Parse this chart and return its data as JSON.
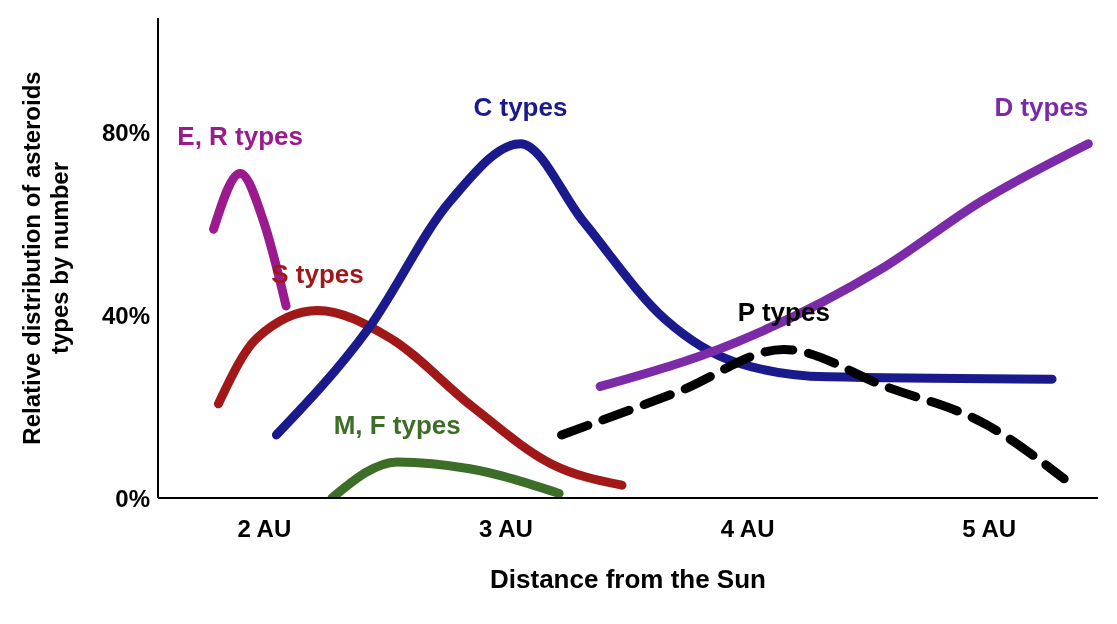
{
  "chart_data": {
    "type": "line",
    "xlabel": "Distance from the Sun",
    "ylabel": "Relative distribution of asteroids types by number",
    "xlim": [
      1.56,
      5.45
    ],
    "xticks": [
      {
        "value": 2,
        "label": "2 AU"
      },
      {
        "value": 3,
        "label": "3 AU"
      },
      {
        "value": 4,
        "label": "4 AU"
      },
      {
        "value": 5,
        "label": "5 AU"
      }
    ],
    "ylim": [
      0,
      105
    ],
    "yticks": [
      {
        "value": 0,
        "label": "0%"
      },
      {
        "value": 40,
        "label": "40%"
      },
      {
        "value": 80,
        "label": "80%"
      }
    ],
    "grid": false,
    "legend": false,
    "marker": "none",
    "series": [
      {
        "name": "E, R types",
        "color": "#9b1b8e",
        "x": [
          1.79,
          1.9,
          2.0,
          2.09
        ],
        "values": [
          58.8,
          71,
          60,
          42
        ]
      },
      {
        "name": "S types",
        "color": "#a01818",
        "x": [
          1.81,
          1.97,
          2.22,
          2.52,
          2.86,
          3.19,
          3.48
        ],
        "values": [
          20.6,
          35,
          41,
          35,
          20,
          7.4,
          2.8
        ]
      },
      {
        "name": "C types",
        "color": "#1a1a8c",
        "x": [
          2.05,
          2.43,
          2.77,
          3.06,
          3.32,
          3.66,
          3.95,
          4.33,
          5.26
        ],
        "values": [
          13.8,
          37,
          65,
          77.5,
          60.5,
          39,
          29.7,
          26.5,
          26
        ]
      },
      {
        "name": "M, F types",
        "color": "#3c6e28",
        "x": [
          2.28,
          2.55,
          2.85,
          3.22
        ],
        "values": [
          0,
          7.9,
          6.4,
          1
        ]
      },
      {
        "name": "D types",
        "color": "#7b2aa8",
        "x": [
          3.39,
          3.95,
          4.55,
          4.97,
          5.41
        ],
        "values": [
          24.4,
          34,
          50,
          65,
          77.5
        ]
      },
      {
        "name": "P types",
        "color": "#000000",
        "line_style": "dashed",
        "x": [
          3.23,
          3.72,
          4.15,
          4.57,
          4.99,
          5.31
        ],
        "values": [
          13.8,
          23.4,
          32.5,
          24.4,
          16,
          4.2
        ]
      }
    ]
  }
}
